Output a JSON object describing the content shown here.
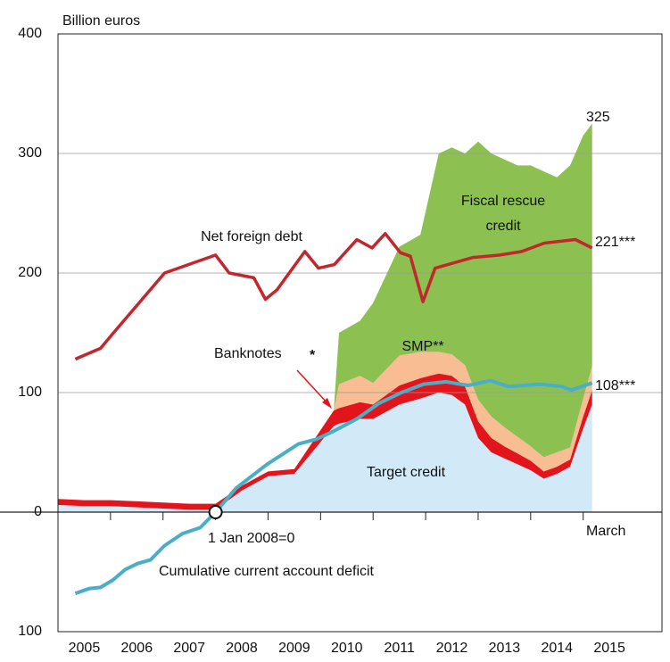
{
  "chart_data": {
    "type": "stacked-area-line",
    "y_axis_label": "Billion euros",
    "ylim": [
      -100,
      400
    ],
    "yticks": [
      400,
      300,
      200,
      100,
      0,
      {
        "value": -100,
        "label": "100"
      }
    ],
    "xlim": [
      2005,
      2016.5
    ],
    "xticks": [
      {
        "value": 2005,
        "label": "2005"
      },
      {
        "value": 2006,
        "label": "2006"
      },
      {
        "value": 2007,
        "label": "2007"
      },
      {
        "value": 2008,
        "label": "2008"
      },
      {
        "value": 2009,
        "label": "2009"
      },
      {
        "value": 2010,
        "label": "2010"
      },
      {
        "value": 2011,
        "label": "2011"
      },
      {
        "value": 2012,
        "label": "2012"
      },
      {
        "value": 2013,
        "label": "2013"
      },
      {
        "value": 2014,
        "label": "2014"
      },
      {
        "value": 2015,
        "label": "2015"
      }
    ],
    "grid": true,
    "areas": {
      "x": [
        2005.0,
        2005.5,
        2006.0,
        2006.5,
        2007.0,
        2007.5,
        2008.0,
        2008.5,
        2009.0,
        2009.5,
        2010.25,
        2010.35,
        2010.75,
        2011.0,
        2011.5,
        2011.9,
        2012.25,
        2012.5,
        2012.75,
        2013.0,
        2013.25,
        2013.5,
        2013.75,
        2014.0,
        2014.25,
        2014.5,
        2014.75,
        2015.0,
        2015.17
      ],
      "series": [
        {
          "name": "Target credit",
          "color": "#d2eaf8",
          "values": [
            6,
            5,
            5,
            4,
            3,
            2,
            2,
            18,
            30,
            32,
            72,
            74,
            78,
            78,
            90,
            95,
            100,
            98,
            90,
            62,
            50,
            45,
            40,
            35,
            28,
            32,
            38,
            70,
            90
          ]
        },
        {
          "name": "Banknotes",
          "color": "#e3151c",
          "values": [
            5,
            5,
            5,
            5,
            5,
            5,
            5,
            4,
            4,
            4,
            13,
            13,
            14,
            12,
            16,
            17,
            16,
            16,
            15,
            14,
            12,
            10,
            9,
            8,
            6,
            6,
            6,
            10,
            12
          ]
        },
        {
          "name": "SMP**",
          "color": "#f8bd93",
          "values": [
            0,
            0,
            0,
            0,
            0,
            0,
            0,
            0,
            0,
            0,
            0,
            20,
            22,
            18,
            25,
            22,
            18,
            18,
            18,
            18,
            18,
            16,
            14,
            12,
            12,
            12,
            10,
            15,
            20
          ]
        },
        {
          "name": "Fiscal rescue credit",
          "color": "#8cc152",
          "values": [
            0,
            0,
            0,
            0,
            0,
            0,
            0,
            0,
            0,
            0,
            0,
            43,
            46,
            67,
            91,
            98,
            166,
            173,
            177,
            216,
            220,
            224,
            227,
            235,
            239,
            230,
            236,
            220,
            203
          ]
        }
      ]
    },
    "lines": [
      {
        "name": "Net foreign debt",
        "color": "#c1272d",
        "x": [
          2005.33,
          2005.81,
          2006.04,
          2007.03,
          2008.0,
          2008.26,
          2008.73,
          2008.95,
          2009.17,
          2009.7,
          2009.96,
          2010.26,
          2010.69,
          2010.98,
          2011.23,
          2011.52,
          2011.71,
          2011.95,
          2012.18,
          2012.9,
          2013.41,
          2013.83,
          2014.26,
          2014.85,
          2015.17
        ],
        "values": [
          128,
          137,
          149,
          200,
          215,
          200,
          196,
          178,
          186,
          218,
          204,
          207,
          228,
          221,
          233,
          217,
          214,
          176,
          204,
          213,
          215,
          218,
          225,
          228,
          221
        ]
      },
      {
        "name": "Cumulative current account deficit",
        "color": "#4aaec9",
        "x": [
          2005.33,
          2005.59,
          2005.81,
          2006.04,
          2006.28,
          2006.52,
          2006.76,
          2007.03,
          2007.37,
          2007.71,
          2008.0,
          2008.39,
          2008.98,
          2009.58,
          2009.92,
          2010.26,
          2010.69,
          2011.11,
          2011.54,
          2011.96,
          2012.39,
          2012.81,
          2013.24,
          2013.58,
          2014.18,
          2014.6,
          2014.77,
          2015.17
        ],
        "values": [
          -68,
          -64,
          -63,
          -57,
          -48,
          -43,
          -40,
          -28,
          -18,
          -13,
          0,
          20,
          40,
          57,
          61,
          68,
          78,
          91,
          100,
          107,
          109,
          106,
          110,
          105,
          107,
          105,
          102,
          108
        ]
      }
    ],
    "annotations": {
      "top_value": "325",
      "debt_value": "221***",
      "deficit_value": "108***",
      "debt_label": "Net foreign debt",
      "fiscal_label_1": "Fiscal rescue",
      "fiscal_label_2": "credit",
      "smp_label": "SMP**",
      "banknotes_label": "Banknotes",
      "banknotes_star": "*",
      "target_label": "Target credit",
      "zero_note": "1 Jan 2008=0",
      "deficit_label": "Cumulative current account deficit",
      "end_month": "March"
    }
  }
}
